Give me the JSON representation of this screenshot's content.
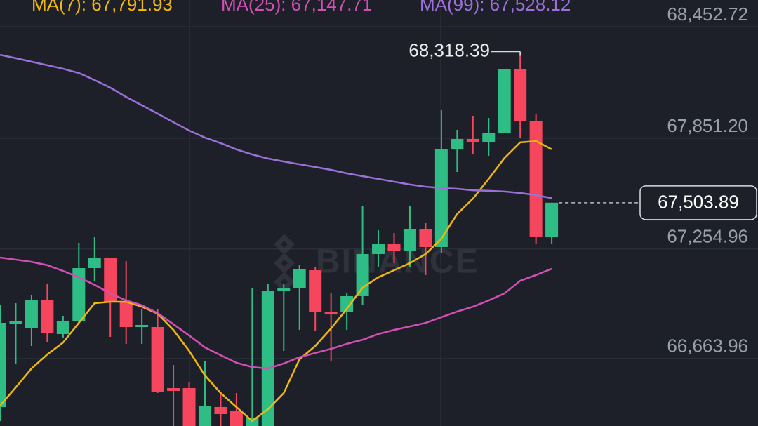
{
  "chart_data": {
    "type": "candlestick",
    "watermark": "BINANCE",
    "up_color": "#2ebd85",
    "down_color": "#f6465d",
    "grid": true,
    "ylim": [
      66300.2,
      68596.5
    ],
    "yticks": [
      {
        "value": 68452.72,
        "label": "68,452.72"
      },
      {
        "value": 67851.2,
        "label": "67,851.20"
      },
      {
        "value": 67254.96,
        "label": "67,254.96"
      },
      {
        "value": 66663.96,
        "label": "66,663.96"
      }
    ],
    "high_annotation": {
      "value": 68318.39,
      "label": "68,318.39"
    },
    "last_price": {
      "value": 67503.89,
      "label": "67,503.89"
    },
    "open": [
      66402.4,
      66848.8,
      66829.8,
      66977.4,
      66795.8,
      66867.7,
      67151.4,
      67204.4,
      66969.8,
      66833.6,
      66833.6,
      66504.5,
      66504.5,
      66300.2,
      66402.4,
      66379.7,
      66300.2,
      66300.2,
      67026.6,
      67045.5,
      67140.0,
      66913.1,
      66913.1,
      67000.1,
      67227.1,
      67280.0,
      67246.0,
      67363.2,
      67264.9,
      67790.7,
      67847.5,
      67832.3,
      67881.5,
      68222.0,
      67945.8,
      67317.8
    ],
    "high": [
      66950.9,
      66962.2,
      67007.6,
      67064.4,
      66894.1,
      67287.6,
      67317.8,
      67204.4,
      67189.2,
      66932.0,
      66932.0,
      66629.3,
      66534.8,
      66648.3,
      66478.0,
      66478.0,
      67045.5,
      67064.4,
      67064.4,
      67166.5,
      67159.0,
      67015.2,
      67015.2,
      67488.1,
      67355.7,
      67340.5,
      67488.1,
      67393.5,
      68002.6,
      67896.6,
      67972.3,
      67961.0,
      68222.0,
      68318.39,
      67983.7,
      67503.89
    ],
    "low": [
      66326.7,
      66636.9,
      66731.5,
      66754.2,
      66773.1,
      66856.3,
      67083.3,
      66780.7,
      66742.8,
      66742.8,
      66478.0,
      66300.2,
      66300.2,
      66300.2,
      66300.2,
      66300.2,
      66300.2,
      66300.2,
      66705.0,
      66818.5,
      66810.9,
      66648.3,
      66818.5,
      66950.9,
      67159.0,
      67177.9,
      67159.0,
      67113.6,
      67234.6,
      67669.7,
      67764.2,
      67756.7,
      67881.5,
      67851.2,
      67283.8,
      67280.0
    ],
    "close": [
      66856.3,
      66863.9,
      66977.4,
      66799.6,
      66867.7,
      67151.4,
      67204.4,
      66969.8,
      66833.6,
      66845.0,
      66485.6,
      66489.4,
      66300.2,
      66409.9,
      66364.5,
      66300.2,
      66345.6,
      67026.6,
      67045.5,
      67147.6,
      66913.1,
      66905.5,
      67000.1,
      67227.1,
      67280.0,
      67242.2,
      67363.2,
      67264.9,
      67790.7,
      67847.5,
      67832.3,
      67881.5,
      68222.0,
      67945.8,
      67317.8,
      67503.89
    ],
    "series": [
      {
        "name": "MA(7): 67,791.93",
        "color": "#f0b90b",
        "values": [
          66410,
          66508,
          66610,
          66686,
          66750,
          66856,
          66962,
          66970,
          66970,
          66943,
          66906,
          66818,
          66705,
          66573,
          66478,
          66402,
          66327,
          66391,
          66478,
          66660,
          66732,
          66826,
          66932,
          67046,
          67102,
          67140,
          67178,
          67227,
          67310,
          67443,
          67526,
          67632,
          67745,
          67829,
          67836,
          67791.93
        ]
      },
      {
        "name": "MA(25): 67,147.71",
        "color": "#d24fb4",
        "values": [
          67208,
          67197,
          67185,
          67167,
          67136,
          67102,
          67061,
          67015,
          66977,
          66951,
          66909,
          66849,
          66788,
          66724,
          66682,
          66641,
          66618,
          66610,
          66637,
          66671,
          66694,
          66716,
          66743,
          66765,
          66796,
          66818,
          66837,
          66856,
          66887,
          66917,
          66943,
          66977,
          67015,
          67083,
          67114,
          67147.71
        ]
      },
      {
        "name": "MA(99): 67,528.12",
        "color": "#9b70d8",
        "values": [
          68301,
          68283,
          68264,
          68245,
          68226,
          68203,
          68165,
          68124,
          68074,
          68029,
          67984,
          67938,
          67893,
          67855,
          67825,
          67791,
          67764,
          67742,
          67726,
          67711,
          67696,
          67681,
          67662,
          67647,
          67632,
          67617,
          67602,
          67590,
          67583,
          67579,
          67571,
          67568,
          67564,
          67556,
          67545,
          67528.12
        ]
      }
    ]
  }
}
